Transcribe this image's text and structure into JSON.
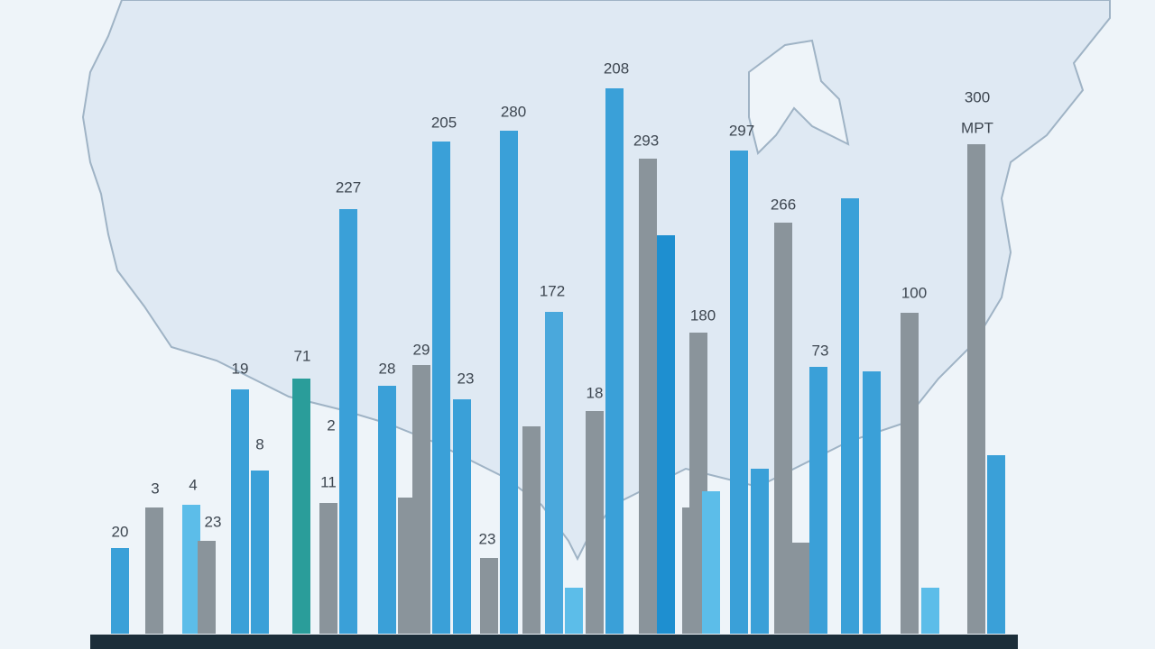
{
  "chart_data": {
    "type": "bar",
    "values": [
      95,
      140,
      143,
      103,
      271,
      181,
      283,
      145,
      471,
      275,
      151,
      298,
      546,
      260,
      84,
      558,
      230,
      357,
      51,
      247,
      605,
      527,
      442,
      140,
      334,
      158,
      536,
      183,
      456,
      101,
      296,
      483,
      291,
      356,
      51,
      543,
      198
    ],
    "colors": [
      "#3aa0d8",
      "#8a949b",
      "#5cbde9",
      "#8a949b",
      "#3aa0d8",
      "#3aa0d8",
      "#2a9d9a",
      "#8a949b",
      "#3aa0d8",
      "#3aa0d8",
      "#8a949b",
      "#8a949b",
      "#3aa0d8",
      "#3aa0d8",
      "#8a949b",
      "#3aa0d8",
      "#8a949b",
      "#4aa8dc",
      "#5cbde9",
      "#8a949b",
      "#3aa0d8",
      "#8a949b",
      "#1e8fd0",
      "#8a949b",
      "#8a949b",
      "#5cbde9",
      "#3aa0d8",
      "#3aa0d8",
      "#8a949b",
      "#8a949b",
      "#3aa0d8",
      "#3aa0d8",
      "#3aa0d8",
      "#8a949b",
      "#5cbde9",
      "#8a949b",
      "#3aa0d8"
    ],
    "ylim": [
      0,
      620
    ],
    "annotations": [
      "20",
      "3",
      "4",
      "23",
      "19",
      "8",
      "71",
      "2",
      "11",
      "227",
      "28",
      "29",
      "205",
      "23",
      "23",
      "280",
      "172",
      "18",
      "208",
      "293",
      "180",
      "297",
      "266",
      "73",
      "100",
      "300",
      "MPT"
    ]
  }
}
